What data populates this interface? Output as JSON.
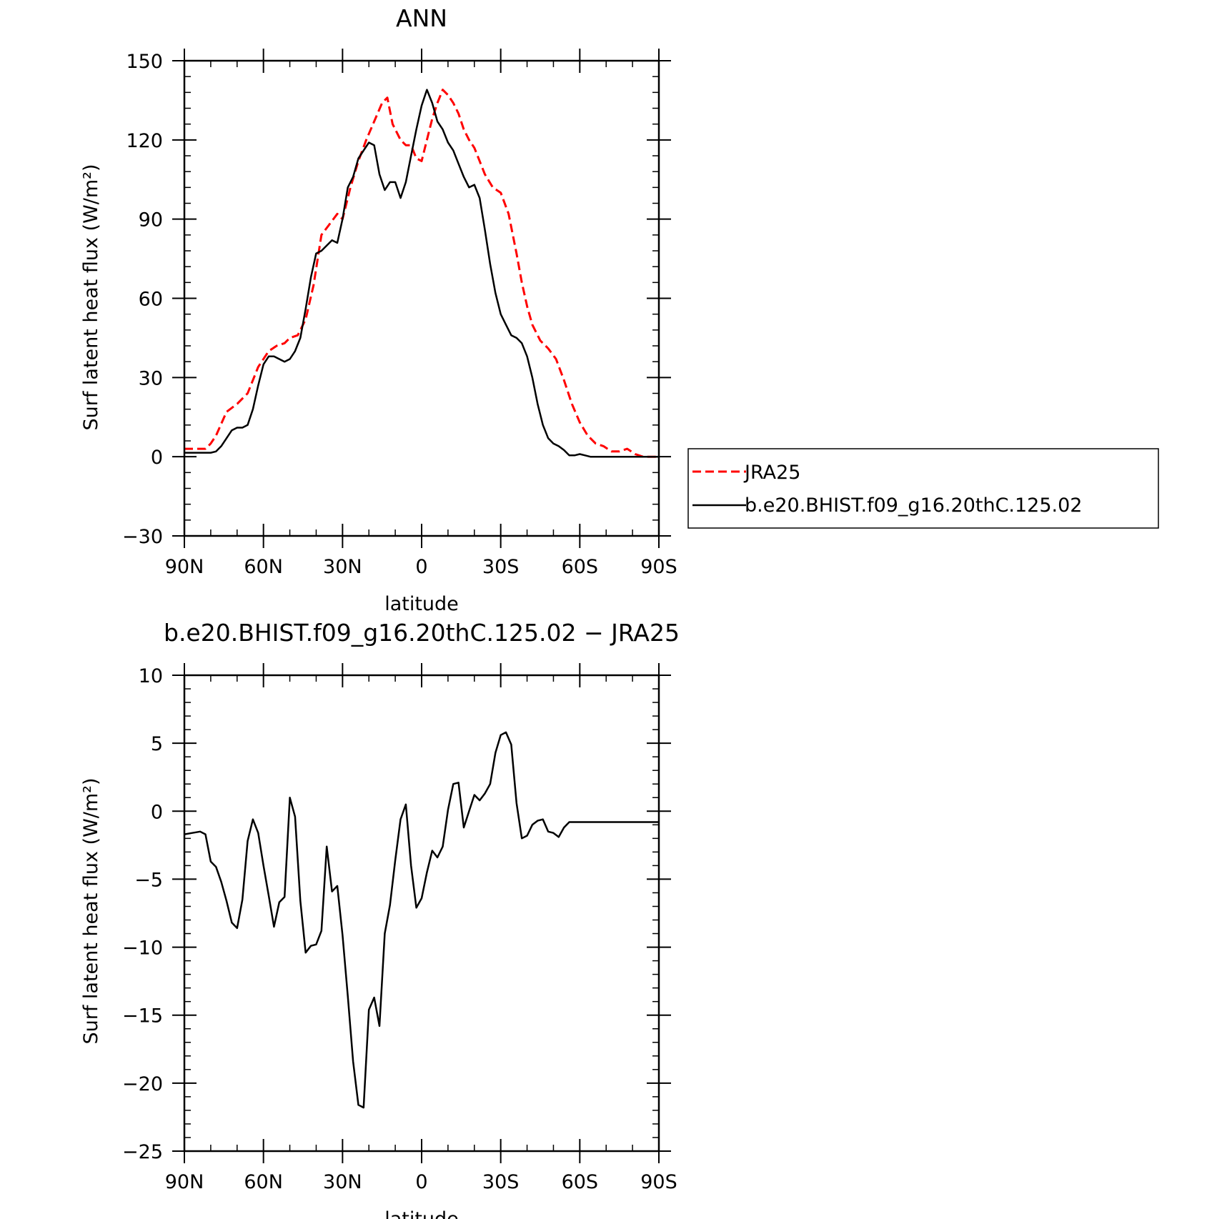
{
  "chart_data": [
    {
      "type": "line",
      "title": "ANN",
      "xlabel": "latitude",
      "ylabel": "Surf latent heat flux (W/m²)",
      "xlim": [
        90,
        -90
      ],
      "ylim": [
        -30,
        150
      ],
      "xticks": [
        90,
        60,
        30,
        0,
        -30,
        -60,
        -90
      ],
      "xtick_labels": [
        "90N",
        "60N",
        "30N",
        "0",
        "30S",
        "60S",
        "90S"
      ],
      "yticks": [
        -30,
        0,
        30,
        60,
        90,
        120,
        150
      ],
      "ytick_labels": [
        "−30",
        "0",
        "30",
        "60",
        "90",
        "120",
        "150"
      ],
      "grid": false,
      "legend_position": "right",
      "series": [
        {
          "name": "JRA25",
          "color": "#ff0000",
          "dash": "dashed",
          "x": [
            90,
            86,
            82,
            80,
            78,
            74,
            70,
            66,
            62,
            58,
            55,
            52,
            50,
            47,
            44,
            41,
            38,
            35,
            32,
            30,
            27,
            24,
            21,
            18,
            15,
            13,
            11,
            8,
            6,
            4,
            2,
            0,
            -2,
            -4,
            -6,
            -8,
            -10,
            -12,
            -14,
            -16,
            -18,
            -20,
            -22,
            -24,
            -27,
            -30,
            -33,
            -36,
            -38,
            -40,
            -42,
            -45,
            -48,
            -51,
            -54,
            -57,
            -60,
            -63,
            -66,
            -69,
            -72,
            -75,
            -78,
            -81,
            -84,
            -87,
            -90
          ],
          "y": [
            3,
            3,
            3,
            5,
            8,
            17,
            20,
            24,
            34,
            40,
            42,
            43,
            45,
            46,
            52,
            65,
            84,
            88,
            92,
            90,
            102,
            112,
            120,
            127,
            134,
            136,
            126,
            120,
            118,
            118,
            113,
            112,
            120,
            128,
            134,
            139,
            137,
            134,
            130,
            124,
            120,
            117,
            112,
            107,
            102,
            100,
            92,
            77,
            66,
            57,
            50,
            44,
            41,
            37,
            29,
            20,
            13,
            8,
            5,
            4,
            2,
            2,
            3,
            1,
            0,
            0,
            0
          ]
        },
        {
          "name": "b.e20.BHIST.f09_g16.20thC.125.02",
          "color": "#000000",
          "dash": "solid",
          "x": [
            90,
            86,
            82,
            80,
            78,
            76,
            74,
            72,
            70,
            68,
            66,
            64,
            62,
            60,
            58,
            56,
            54,
            52,
            50,
            48,
            46,
            44,
            42,
            40,
            38,
            36,
            34,
            32,
            30,
            28,
            26,
            24,
            22,
            20,
            18,
            16,
            14,
            12,
            10,
            8,
            6,
            4,
            2,
            0,
            -2,
            -4,
            -6,
            -8,
            -10,
            -12,
            -14,
            -16,
            -18,
            -20,
            -22,
            -24,
            -26,
            -28,
            -30,
            -32,
            -34,
            -36,
            -38,
            -40,
            -42,
            -44,
            -46,
            -48,
            -50,
            -52,
            -54,
            -56,
            -58,
            -60,
            -62,
            -64,
            -66,
            -68,
            -70,
            -72,
            -74,
            -76,
            -78,
            -80,
            -82,
            -84,
            -86,
            -88,
            -90
          ],
          "y": [
            1.5,
            1.5,
            1.5,
            1.5,
            2,
            4,
            7,
            10,
            11,
            11,
            12,
            18,
            27,
            35,
            38,
            38,
            37,
            36,
            37,
            40,
            45,
            56,
            68,
            77,
            78,
            80,
            82,
            81,
            90,
            102,
            106,
            113,
            116,
            119,
            118,
            107,
            101,
            104,
            104,
            98,
            104,
            114,
            124,
            133,
            139,
            134,
            127,
            124,
            119,
            116,
            111,
            106,
            102,
            103,
            98,
            86,
            73,
            62,
            54,
            50,
            46,
            45,
            43,
            38,
            30,
            20,
            12,
            7,
            5,
            4,
            2.5,
            0.5,
            0.5,
            1,
            0.5,
            0,
            0,
            0,
            0,
            0,
            0,
            0,
            0,
            0,
            0,
            0,
            0,
            0,
            0
          ]
        }
      ]
    },
    {
      "type": "line",
      "title": "b.e20.BHIST.f09_g16.20thC.125.02 − JRA25",
      "xlabel": "latitude",
      "ylabel": "Surf latent heat flux (W/m²)",
      "xlim": [
        90,
        -90
      ],
      "ylim": [
        -25,
        10
      ],
      "xticks": [
        90,
        60,
        30,
        0,
        -30,
        -60,
        -90
      ],
      "xtick_labels": [
        "90N",
        "60N",
        "30N",
        "0",
        "30S",
        "60S",
        "90S"
      ],
      "yticks": [
        -25,
        -20,
        -15,
        -10,
        -5,
        0,
        5,
        10
      ],
      "ytick_labels": [
        "−25",
        "−20",
        "−15",
        "−10",
        "−5",
        "0",
        "5",
        "10"
      ],
      "grid": false,
      "series": [
        {
          "color": "#000000",
          "dash": "solid",
          "x": [
            90,
            87,
            84,
            82,
            80,
            78,
            76,
            74,
            72,
            70,
            68,
            66,
            64,
            62,
            60,
            58,
            56,
            54,
            52,
            50,
            48,
            46,
            44,
            42,
            40,
            38,
            36,
            34,
            32,
            30,
            28,
            26,
            24,
            22,
            20,
            18,
            16,
            14,
            12,
            10,
            8,
            6,
            4,
            2,
            0,
            -2,
            -4,
            -6,
            -8,
            -10,
            -12,
            -14,
            -16,
            -18,
            -20,
            -22,
            -24,
            -26,
            -28,
            -30,
            -32,
            -34,
            -36,
            -38,
            -40,
            -42,
            -44,
            -46,
            -48,
            -50,
            -52,
            -54,
            -56,
            -58,
            -60,
            -62,
            -64,
            -66,
            -68,
            -70,
            -72,
            -74,
            -76,
            -78,
            -80,
            -82,
            -84,
            -86,
            -88,
            -90
          ],
          "y": [
            -1.7,
            -1.6,
            -1.5,
            -1.7,
            -3.7,
            -4.1,
            -5.2,
            -6.6,
            -8.2,
            -8.6,
            -6.5,
            -2.2,
            -0.6,
            -1.6,
            -4.0,
            -6.2,
            -8.5,
            -6.7,
            -6.3,
            1.0,
            -0.4,
            -6.6,
            -10.4,
            -9.9,
            -9.8,
            -8.8,
            -2.6,
            -5.9,
            -5.5,
            -9.1,
            -13.6,
            -18.4,
            -21.6,
            -21.8,
            -14.6,
            -13.7,
            -15.8,
            -9.0,
            -6.9,
            -3.6,
            -0.6,
            0.5,
            -4.0,
            -7.1,
            -6.4,
            -4.5,
            -2.9,
            -3.4,
            -2.6,
            0.1,
            2.0,
            2.1,
            -1.2,
            0.0,
            1.2,
            0.8,
            1.3,
            2.0,
            4.3,
            5.6,
            5.8,
            4.9,
            0.6,
            -2.0,
            -1.8,
            -1.0,
            -0.7,
            -0.6,
            -1.5,
            -1.6,
            -1.9,
            -1.2,
            -0.8,
            -0.8,
            -0.8,
            -0.8,
            -0.8,
            -0.8,
            -0.8,
            -0.8,
            -0.8,
            -0.8,
            -0.8,
            -0.8,
            -0.8,
            -0.8,
            -0.8,
            -0.8,
            -0.8,
            -0.8
          ]
        }
      ]
    }
  ]
}
